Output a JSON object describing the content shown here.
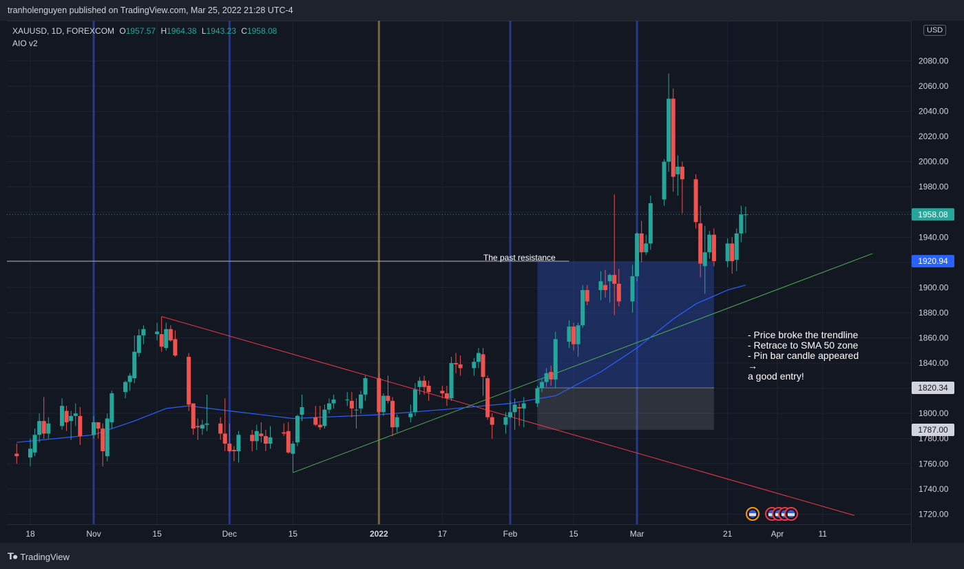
{
  "header": {
    "publish_line": "tranholenguyen published on TradingView.com, Mar 25, 2022 21:28 UTC-4"
  },
  "footer": {
    "brand": "TradingView"
  },
  "legend": {
    "symbol_line": "XAUUSD, 1D, FOREXCOM",
    "o_label": "O",
    "o_value": "1957.57",
    "h_label": "H",
    "h_value": "1964.38",
    "l_label": "L",
    "l_value": "1943.23",
    "c_label": "C",
    "c_value": "1958.08",
    "indicator": "AIO v2"
  },
  "currency": "USD",
  "annotations": {
    "resistance_label": "The past resistance",
    "note_lines": [
      "- Price broke the trendline",
      "- Retrace to SMA 50 zone",
      "- Pin bar candle appeared",
      "→",
      "a good entry!"
    ]
  },
  "colors": {
    "up": "#26a69a",
    "down": "#ef5350",
    "neutral": "#a38a2e",
    "sma": "#2962ff",
    "trend_down": "#f23645",
    "trend_up": "#4caf50",
    "vline_blue": "#2a3d8f",
    "vline_orange": "#8a6a3c",
    "last_price": "#26a69a",
    "resistance_price": "#2962ff"
  },
  "chart_data": {
    "type": "candlestick",
    "symbol": "XAUUSD",
    "interval": "1D",
    "ylim": [
      1712,
      2112
    ],
    "y_ticks": [
      1720,
      1740,
      1760,
      1780,
      1800,
      1820,
      1840,
      1860,
      1880,
      1900,
      1920,
      1940,
      1960,
      1980,
      2000,
      2020,
      2040,
      2060,
      2080
    ],
    "x_ticks": [
      {
        "label": "18",
        "date": "2021-10-18"
      },
      {
        "label": "Nov",
        "date": "2021-11-01"
      },
      {
        "label": "15",
        "date": "2021-11-15"
      },
      {
        "label": "Dec",
        "date": "2021-12-01"
      },
      {
        "label": "15",
        "date": "2021-12-15"
      },
      {
        "label": "2022",
        "date": "2022-01-03"
      },
      {
        "label": "17",
        "date": "2022-01-17"
      },
      {
        "label": "Feb",
        "date": "2022-02-01"
      },
      {
        "label": "15",
        "date": "2022-02-15"
      },
      {
        "label": "Mar",
        "date": "2022-03-01"
      },
      {
        "label": "21",
        "date": "2022-03-21"
      },
      {
        "label": "Apr",
        "date": "2022-04-01"
      },
      {
        "label": "11",
        "date": "2022-04-11"
      }
    ],
    "price_labels": [
      {
        "value": "1958.08",
        "price": 1958.08,
        "kind": "last"
      },
      {
        "value": "1920.94",
        "price": 1920.94,
        "kind": "resistance"
      },
      {
        "value": "1820.34",
        "price": 1820.34,
        "kind": "level"
      },
      {
        "value": "1787.00",
        "price": 1787.0,
        "kind": "level"
      }
    ],
    "candles": [
      [
        "2021-10-15",
        1768,
        1776,
        1760,
        1766
      ],
      [
        "2021-10-18",
        1765,
        1780,
        1758,
        1772
      ],
      [
        "2021-10-19",
        1769,
        1788,
        1766,
        1783
      ],
      [
        "2021-10-20",
        1783,
        1800,
        1777,
        1794
      ],
      [
        "2021-10-21",
        1794,
        1813,
        1780,
        1784
      ],
      [
        "2021-10-22",
        1784,
        1797,
        1780,
        1792
      ],
      [
        "2021-10-25",
        1790,
        1812,
        1787,
        1806
      ],
      [
        "2021-10-26",
        1802,
        1806,
        1786,
        1793
      ],
      [
        "2021-10-27",
        1794,
        1802,
        1779,
        1798
      ],
      [
        "2021-10-28",
        1798,
        1808,
        1790,
        1800
      ],
      [
        "2021-10-29",
        1798,
        1805,
        1775,
        1782
      ],
      [
        "2021-11-01",
        1783,
        1798,
        1780,
        1793
      ],
      [
        "2021-11-02",
        1793,
        1793,
        1780,
        1788
      ],
      [
        "2021-11-03",
        1788,
        1792,
        1758,
        1770
      ],
      [
        "2021-11-04",
        1766,
        1800,
        1762,
        1796
      ],
      [
        "2021-11-05",
        1793,
        1818,
        1788,
        1816
      ],
      [
        "2021-11-08",
        1817,
        1826,
        1812,
        1825
      ],
      [
        "2021-11-09",
        1825,
        1832,
        1818,
        1830
      ],
      [
        "2021-11-10",
        1828,
        1862,
        1824,
        1849
      ],
      [
        "2021-11-11",
        1848,
        1867,
        1845,
        1862
      ],
      [
        "2021-11-12",
        1862,
        1870,
        1855,
        1867
      ],
      [
        "2021-11-15",
        1863,
        1872,
        1858,
        1865
      ],
      [
        "2021-11-16",
        1863,
        1877,
        1849,
        1853
      ],
      [
        "2021-11-17",
        1852,
        1872,
        1850,
        1867
      ],
      [
        "2021-11-18",
        1867,
        1870,
        1857,
        1858
      ],
      [
        "2021-11-19",
        1859,
        1866,
        1845,
        1846
      ],
      [
        "2021-11-22",
        1845,
        1848,
        1802,
        1807
      ],
      [
        "2021-11-23",
        1808,
        1808,
        1783,
        1788
      ],
      [
        "2021-11-24",
        1790,
        1796,
        1779,
        1789
      ],
      [
        "2021-11-25",
        1788,
        1795,
        1783,
        1791
      ],
      [
        "2021-11-26",
        1791,
        1815,
        1786,
        1792
      ],
      [
        "2021-11-29",
        1792,
        1797,
        1779,
        1784
      ],
      [
        "2021-11-30",
        1784,
        1812,
        1770,
        1776
      ],
      [
        "2021-12-01",
        1776,
        1792,
        1769,
        1770
      ],
      [
        "2021-12-02",
        1771,
        1774,
        1762,
        1770
      ],
      [
        "2021-12-03",
        1770,
        1786,
        1761,
        1783
      ],
      [
        "2021-12-06",
        1783,
        1787,
        1770,
        1778
      ],
      [
        "2021-12-07",
        1778,
        1791,
        1771,
        1786
      ],
      [
        "2021-12-08",
        1784,
        1793,
        1777,
        1782
      ],
      [
        "2021-12-09",
        1782,
        1787,
        1770,
        1776
      ],
      [
        "2021-12-10",
        1776,
        1790,
        1772,
        1781
      ],
      [
        "2021-12-13",
        1785,
        1792,
        1782,
        1784
      ],
      [
        "2021-12-14",
        1786,
        1793,
        1768,
        1769
      ],
      [
        "2021-12-15",
        1768,
        1778,
        1753,
        1776
      ],
      [
        "2021-12-16",
        1777,
        1799,
        1774,
        1798
      ],
      [
        "2021-12-17",
        1799,
        1815,
        1794,
        1805
      ],
      [
        "2021-12-20",
        1797,
        1806,
        1790,
        1791
      ],
      [
        "2021-12-21",
        1791,
        1806,
        1787,
        1789
      ],
      [
        "2021-12-22",
        1790,
        1807,
        1788,
        1803
      ],
      [
        "2021-12-23",
        1803,
        1812,
        1800,
        1808
      ],
      [
        "2021-12-24",
        1808,
        1815,
        1804,
        1811
      ],
      [
        "2021-12-27",
        1811,
        1817,
        1806,
        1811
      ],
      [
        "2021-12-28",
        1810,
        1817,
        1797,
        1804
      ],
      [
        "2021-12-29",
        1803,
        1812,
        1788,
        1803
      ],
      [
        "2021-12-30",
        1804,
        1818,
        1800,
        1815
      ],
      [
        "2021-12-31",
        1815,
        1830,
        1810,
        1828
      ],
      [
        "2022-01-03",
        1828,
        1832,
        1799,
        1801
      ],
      [
        "2022-01-04",
        1801,
        1816,
        1798,
        1814
      ],
      [
        "2022-01-05",
        1814,
        1830,
        1808,
        1810
      ],
      [
        "2022-01-06",
        1810,
        1813,
        1782,
        1789
      ],
      [
        "2022-01-07",
        1789,
        1799,
        1785,
        1797
      ],
      [
        "2022-01-10",
        1797,
        1807,
        1793,
        1800
      ],
      [
        "2022-01-11",
        1801,
        1824,
        1798,
        1819
      ],
      [
        "2022-01-12",
        1821,
        1829,
        1815,
        1826
      ],
      [
        "2022-01-13",
        1826,
        1830,
        1815,
        1821
      ],
      [
        "2022-01-14",
        1822,
        1826,
        1810,
        1817
      ],
      [
        "2022-01-17",
        1818,
        1822,
        1812,
        1816
      ],
      [
        "2022-01-18",
        1816,
        1822,
        1806,
        1812
      ],
      [
        "2022-01-19",
        1812,
        1845,
        1810,
        1840
      ],
      [
        "2022-01-20",
        1840,
        1848,
        1832,
        1839
      ],
      [
        "2022-01-21",
        1839,
        1846,
        1830,
        1836
      ],
      [
        "2022-01-24",
        1836,
        1844,
        1830,
        1841
      ],
      [
        "2022-01-25",
        1841,
        1852,
        1836,
        1848
      ],
      [
        "2022-01-26",
        1847,
        1852,
        1814,
        1829
      ],
      [
        "2022-01-27",
        1828,
        1830,
        1795,
        1797
      ],
      [
        "2022-01-28",
        1797,
        1800,
        1780,
        1791
      ],
      [
        "2022-01-31",
        1791,
        1801,
        1784,
        1797
      ],
      [
        "2022-02-01",
        1797,
        1810,
        1796,
        1801
      ],
      [
        "2022-02-02",
        1801,
        1812,
        1787,
        1807
      ],
      [
        "2022-02-03",
        1805,
        1808,
        1790,
        1804
      ],
      [
        "2022-02-04",
        1804,
        1813,
        1789,
        1808
      ],
      [
        "2022-02-07",
        1808,
        1822,
        1805,
        1820
      ],
      [
        "2022-02-08",
        1820,
        1828,
        1817,
        1825
      ],
      [
        "2022-02-09",
        1825,
        1836,
        1821,
        1832
      ],
      [
        "2022-02-10",
        1833,
        1838,
        1822,
        1827
      ],
      [
        "2022-02-11",
        1827,
        1865,
        1820,
        1859
      ],
      [
        "2022-02-14",
        1857,
        1874,
        1852,
        1869
      ],
      [
        "2022-02-15",
        1869,
        1872,
        1850,
        1855
      ],
      [
        "2022-02-16",
        1855,
        1872,
        1845,
        1870
      ],
      [
        "2022-02-17",
        1870,
        1902,
        1868,
        1898
      ],
      [
        "2022-02-18",
        1898,
        1902,
        1886,
        1889
      ],
      [
        "2022-02-21",
        1898,
        1913,
        1890,
        1905
      ],
      [
        "2022-02-22",
        1902,
        1914,
        1892,
        1898
      ],
      [
        "2022-02-23",
        1905,
        1911,
        1888,
        1910
      ],
      [
        "2022-02-24",
        1910,
        1974,
        1878,
        1903
      ],
      [
        "2022-02-25",
        1903,
        1915,
        1885,
        1889
      ],
      [
        "2022-02-28",
        1889,
        1918,
        1880,
        1909
      ],
      [
        "2022-03-01",
        1909,
        1944,
        1905,
        1943
      ],
      [
        "2022-03-02",
        1943,
        1953,
        1920,
        1928
      ],
      [
        "2022-03-03",
        1928,
        1942,
        1926,
        1935
      ],
      [
        "2022-03-04",
        1935,
        1973,
        1930,
        1967
      ],
      [
        "2022-03-07",
        1970,
        2002,
        1965,
        2000
      ],
      [
        "2022-03-08",
        2000,
        2070,
        1992,
        2050
      ],
      [
        "2022-03-09",
        2050,
        2058,
        1976,
        1988
      ],
      [
        "2022-03-10",
        1990,
        2005,
        1973,
        1996
      ],
      [
        "2022-03-11",
        1996,
        2000,
        1959,
        1986
      ],
      [
        "2022-03-14",
        1986,
        1990,
        1947,
        1952
      ],
      [
        "2022-03-15",
        1951,
        1965,
        1908,
        1919
      ],
      [
        "2022-03-16",
        1917,
        1949,
        1895,
        1928
      ],
      [
        "2022-03-17",
        1928,
        1945,
        1923,
        1942
      ],
      [
        "2022-03-18",
        1942,
        1947,
        1917,
        1921
      ],
      [
        "2022-03-21",
        1921,
        1939,
        1916,
        1935
      ],
      [
        "2022-03-22",
        1935,
        1940,
        1911,
        1921
      ],
      [
        "2022-03-23",
        1922,
        1947,
        1913,
        1943
      ],
      [
        "2022-03-24",
        1943,
        1965,
        1936,
        1958
      ],
      [
        "2022-03-25",
        1957.57,
        1964.38,
        1943.23,
        1958.08
      ]
    ],
    "sma50": [
      [
        "2021-10-15",
        1777
      ],
      [
        "2021-11-01",
        1783
      ],
      [
        "2021-11-10",
        1794
      ],
      [
        "2021-11-17",
        1804
      ],
      [
        "2021-11-22",
        1806
      ],
      [
        "2021-12-01",
        1802
      ],
      [
        "2021-12-15",
        1796
      ],
      [
        "2022-01-03",
        1799
      ],
      [
        "2022-01-17",
        1803
      ],
      [
        "2022-02-01",
        1808
      ],
      [
        "2022-02-11",
        1814
      ],
      [
        "2022-02-21",
        1833
      ],
      [
        "2022-03-01",
        1852
      ],
      [
        "2022-03-09",
        1875
      ],
      [
        "2022-03-14",
        1887
      ],
      [
        "2022-03-21",
        1898
      ],
      [
        "2022-03-25",
        1902
      ]
    ],
    "trendlines": [
      {
        "from": [
          "2021-11-16",
          1877
        ],
        "to": [
          "2022-04-18",
          1719
        ],
        "color": "down"
      },
      {
        "from": [
          "2021-12-15",
          1753
        ],
        "to": [
          "2022-04-22",
          1927
        ],
        "color": "up"
      }
    ],
    "horizontal_line": {
      "from": "2021-10-15",
      "to": "2022-02-14",
      "price": 1920.94
    },
    "zones": [
      {
        "from": "2022-02-07",
        "to": "2022-03-18",
        "top": 1920.94,
        "bottom": 1820.34,
        "kind": "profit"
      },
      {
        "from": "2022-02-07",
        "to": "2022-03-18",
        "top": 1820.34,
        "bottom": 1787.0,
        "kind": "risk"
      }
    ],
    "vertical_lines": [
      {
        "date": "2021-11-01",
        "color": "blue"
      },
      {
        "date": "2021-12-01",
        "color": "blue"
      },
      {
        "date": "2022-01-03",
        "color": "orange"
      },
      {
        "date": "2022-02-01",
        "color": "blue"
      },
      {
        "date": "2022-03-01",
        "color": "blue"
      }
    ]
  }
}
